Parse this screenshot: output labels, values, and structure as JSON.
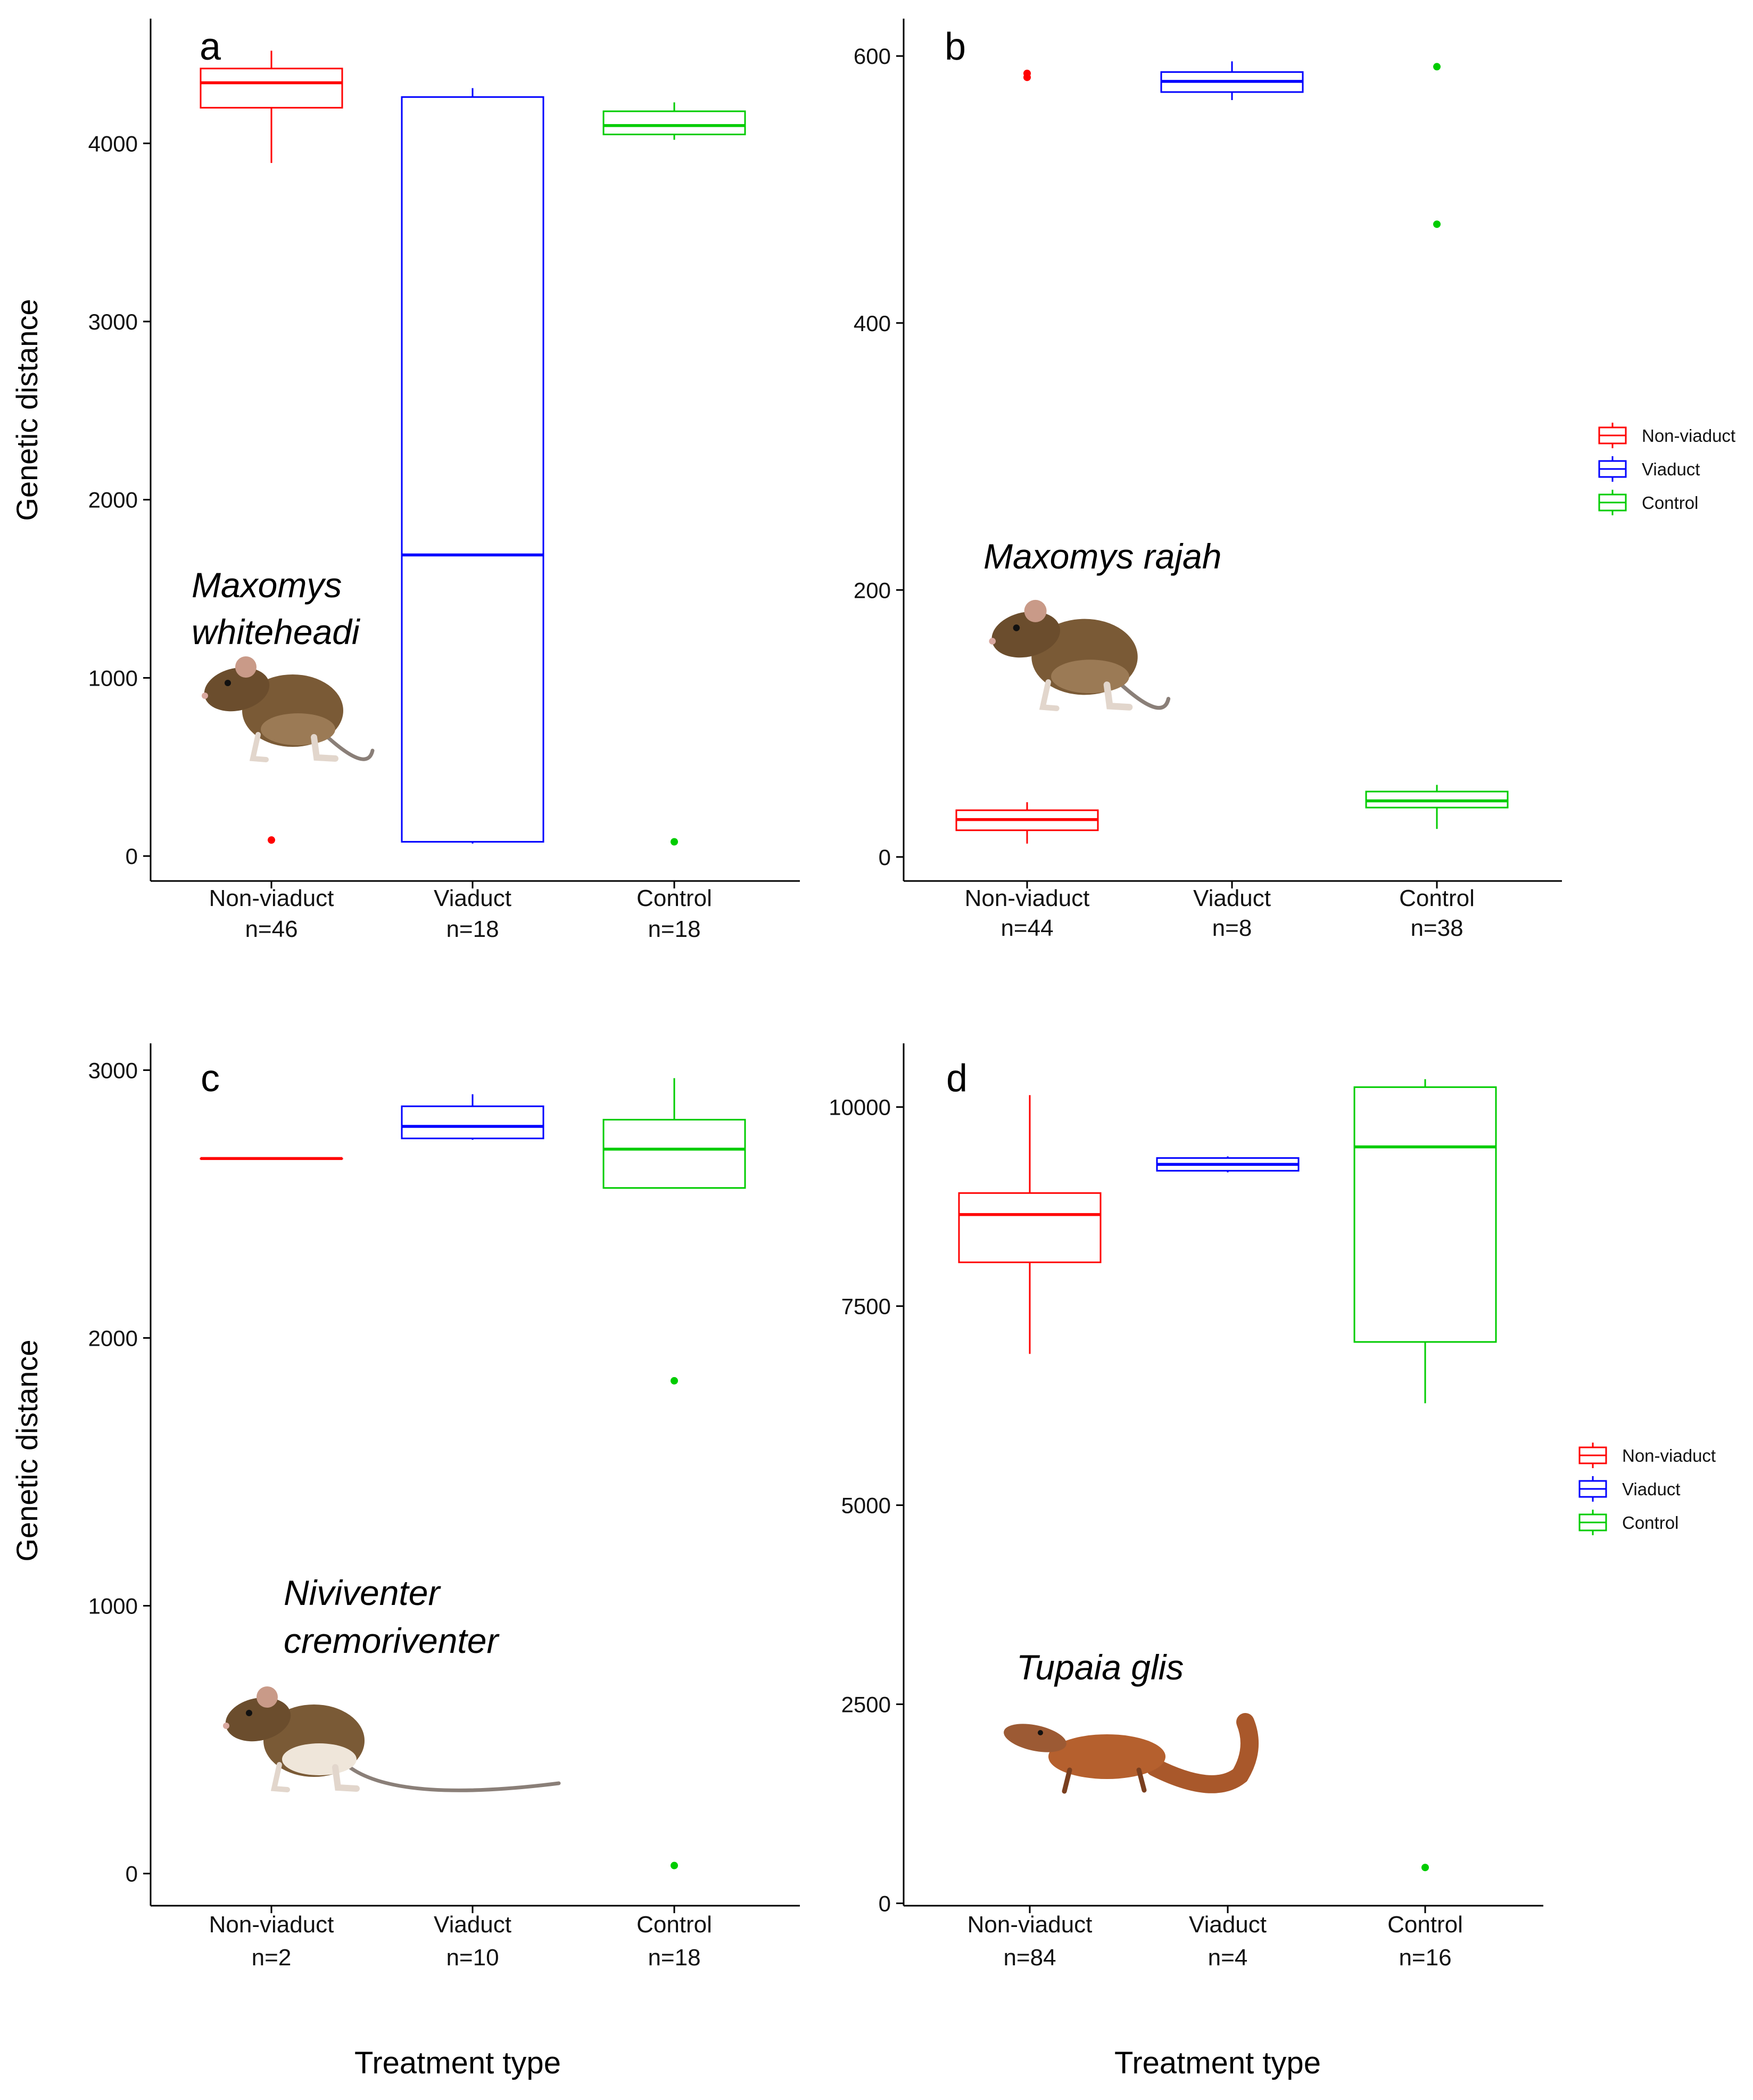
{
  "figure": {
    "y_axis_title": "Genetic distance",
    "x_axis_title": "Treatment type"
  },
  "legend": {
    "items": [
      {
        "label": "Non-viaduct",
        "color": "#ff0000"
      },
      {
        "label": "Viaduct",
        "color": "#0000ff"
      },
      {
        "label": "Control",
        "color": "#00cc00"
      }
    ]
  },
  "chart_data": [
    {
      "type": "box",
      "panel": "a",
      "species": [
        "Maxomys",
        "whiteheadi"
      ],
      "animal_icon": "rat-illustration",
      "ylim": [
        -140,
        4700
      ],
      "yticks": [
        0,
        1000,
        2000,
        3000,
        4000
      ],
      "categories": [
        "Non-viaduct",
        "Viaduct",
        "Control"
      ],
      "n_labels": [
        "n=46",
        "n=18",
        "n=18"
      ],
      "boxes": [
        {
          "group": "Non-viaduct",
          "whisker_low": 3890,
          "q1": 4200,
          "median": 4340,
          "q3": 4420,
          "whisker_high": 4520,
          "outliers": [
            90
          ]
        },
        {
          "group": "Viaduct",
          "whisker_low": 70,
          "q1": 80,
          "median": 1690,
          "q3": 4260,
          "whisker_high": 4310,
          "outliers": []
        },
        {
          "group": "Control",
          "whisker_low": 4020,
          "q1": 4050,
          "median": 4100,
          "q3": 4180,
          "whisker_high": 4230,
          "outliers": [
            80
          ]
        }
      ]
    },
    {
      "type": "box",
      "panel": "b",
      "species": [
        "Maxomys rajah"
      ],
      "animal_icon": "rat-illustration",
      "ylim": [
        -18,
        628
      ],
      "yticks": [
        0,
        200,
        400,
        600
      ],
      "categories": [
        "Non-viaduct",
        "Viaduct",
        "Control"
      ],
      "n_labels": [
        "n=44",
        "n=8",
        "n=38"
      ],
      "boxes": [
        {
          "group": "Non-viaduct",
          "whisker_low": 10,
          "q1": 20,
          "median": 28,
          "q3": 35,
          "whisker_high": 41,
          "outliers": [
            584,
            587
          ]
        },
        {
          "group": "Viaduct",
          "whisker_low": 567,
          "q1": 573,
          "median": 581,
          "q3": 588,
          "whisker_high": 596,
          "outliers": []
        },
        {
          "group": "Control",
          "whisker_low": 21,
          "q1": 37,
          "median": 42,
          "q3": 49,
          "whisker_high": 54,
          "outliers": [
            474,
            592
          ]
        }
      ]
    },
    {
      "type": "box",
      "panel": "c",
      "species": [
        "Niviventer",
        "cremoriventer"
      ],
      "animal_icon": "rat-illustration",
      "ylim": [
        -120,
        3100
      ],
      "yticks": [
        0,
        1000,
        2000,
        3000
      ],
      "categories": [
        "Non-viaduct",
        "Viaduct",
        "Control"
      ],
      "n_labels": [
        "n=2",
        "n=10",
        "n=18"
      ],
      "boxes": [
        {
          "group": "Non-viaduct",
          "whisker_low": 2670,
          "q1": 2670,
          "median": 2670,
          "q3": 2670,
          "whisker_high": 2670,
          "outliers": []
        },
        {
          "group": "Viaduct",
          "whisker_low": 2740,
          "q1": 2745,
          "median": 2790,
          "q3": 2865,
          "whisker_high": 2910,
          "outliers": []
        },
        {
          "group": "Control",
          "whisker_low": 2560,
          "q1": 2560,
          "median": 2705,
          "q3": 2815,
          "whisker_high": 2970,
          "outliers": [
            1840,
            30
          ]
        }
      ]
    },
    {
      "type": "box",
      "panel": "d",
      "species": [
        "Tupaia glis"
      ],
      "animal_icon": "treeshrew-illustration",
      "ylim": [
        -30,
        10800
      ],
      "yticks": [
        0,
        2500,
        5000,
        7500,
        10000
      ],
      "categories": [
        "Non-viaduct",
        "Viaduct",
        "Control"
      ],
      "n_labels": [
        "n=84",
        "n=4",
        "n=16"
      ],
      "boxes": [
        {
          "group": "Non-viaduct",
          "whisker_low": 6900,
          "q1": 8050,
          "median": 8650,
          "q3": 8920,
          "whisker_high": 10150,
          "outliers": []
        },
        {
          "group": "Viaduct",
          "whisker_low": 9180,
          "q1": 9200,
          "median": 9280,
          "q3": 9360,
          "whisker_high": 9380,
          "outliers": []
        },
        {
          "group": "Control",
          "whisker_low": 6280,
          "q1": 7050,
          "median": 9500,
          "q3": 10250,
          "whisker_high": 10350,
          "outliers": [
            450
          ]
        }
      ]
    }
  ]
}
